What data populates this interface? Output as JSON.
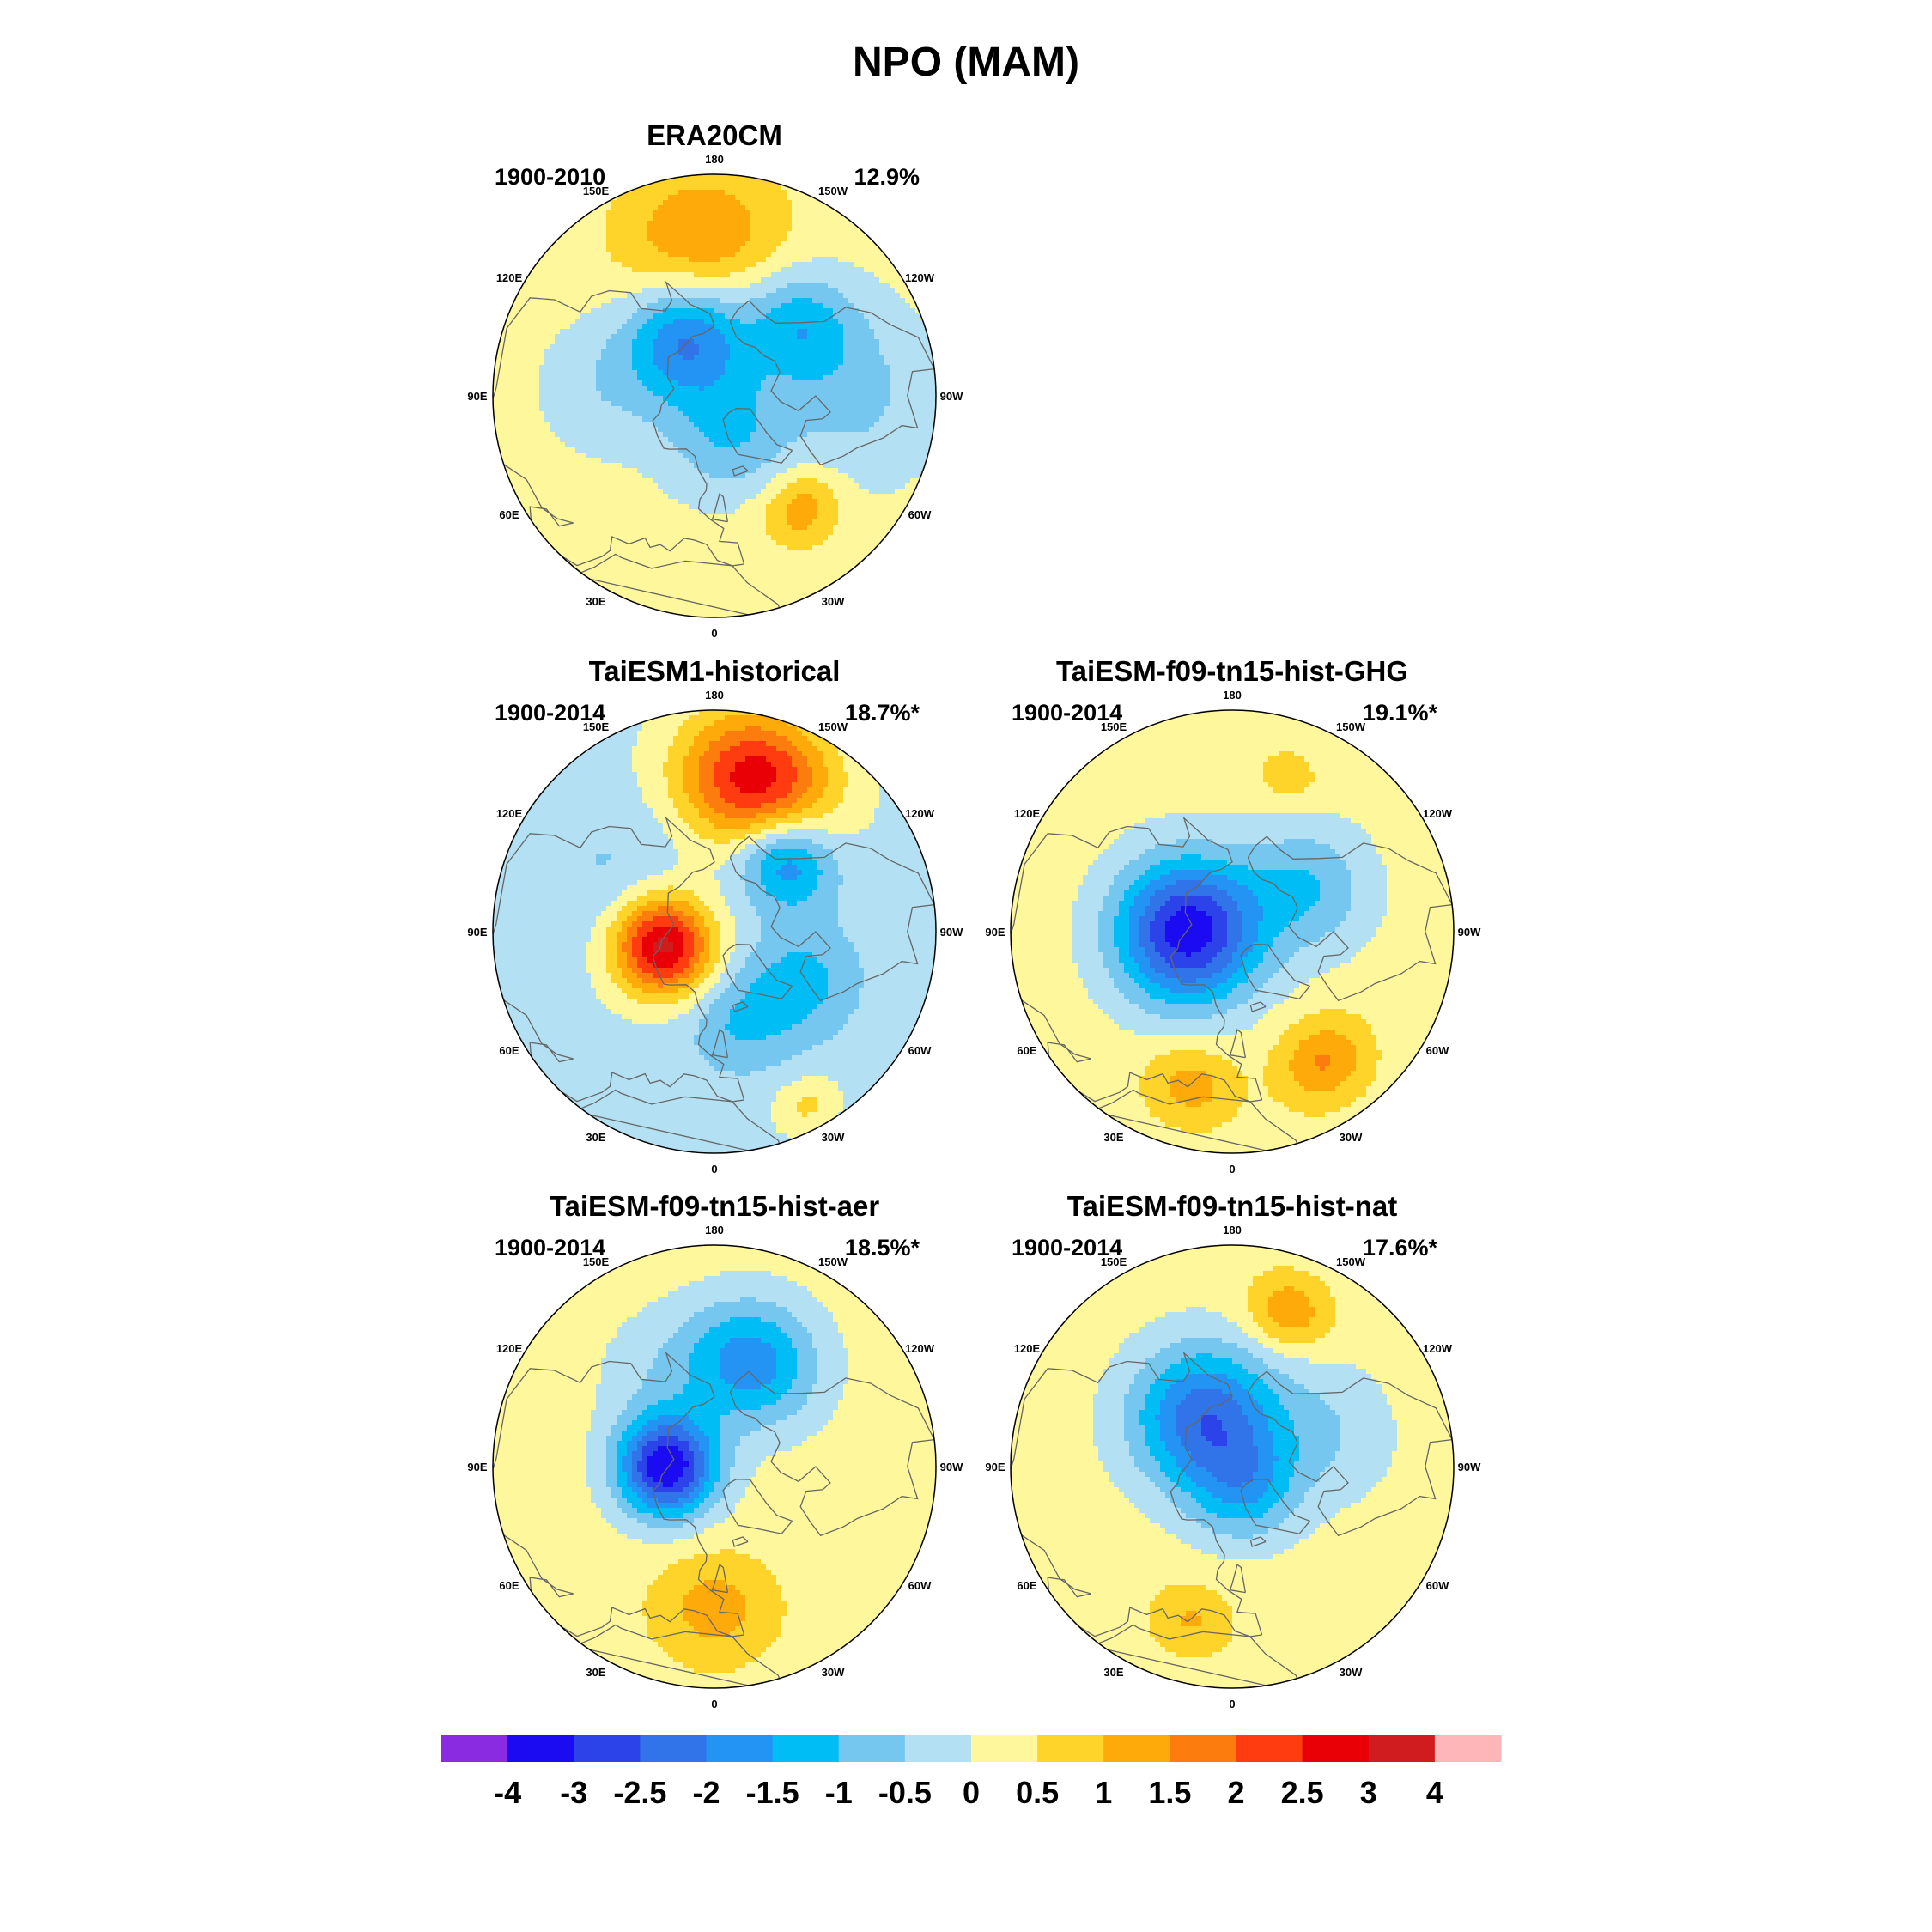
{
  "title": "NPO (MAM)",
  "colorbar": {
    "colors": [
      "#8a2be2",
      "#1a0bf2",
      "#2d43ea",
      "#3173e8",
      "#2394f3",
      "#00bdf5",
      "#76c7ef",
      "#b3e0f2",
      "#fff79c",
      "#fed32a",
      "#fdaa0a",
      "#fd7c0e",
      "#fe3c10",
      "#e80006",
      "#d01b1f",
      "#ffb6b9"
    ],
    "labels": [
      "-4",
      "-3",
      "-2.5",
      "-2",
      "-1.5",
      "-1",
      "-0.5",
      "0",
      "0.5",
      "1",
      "1.5",
      "2",
      "2.5",
      "3",
      "4"
    ]
  },
  "longitude_labels": [
    "180",
    "150E",
    "120E",
    "90E",
    "60E",
    "30E",
    "0",
    "30W",
    "60W",
    "90W",
    "120W",
    "150W"
  ],
  "panels": [
    {
      "id": "era20cm",
      "title": "ERA20CM",
      "period": "1900-2010",
      "variance": "12.9%",
      "base_level": 0.2,
      "blobs": [
        {
          "lon": 175,
          "lat": 40,
          "amp": 1.3,
          "sigma": 16
        },
        {
          "lon": 155,
          "lat": 70,
          "amp": -2.2,
          "sigma": 13
        },
        {
          "lon": -130,
          "lat": 55,
          "amp": -1.4,
          "sigma": 12
        },
        {
          "lon": -20,
          "lat": 78,
          "amp": -1.2,
          "sigma": 14
        },
        {
          "lon": -38,
          "lat": 45,
          "amp": 1.2,
          "sigma": 8
        },
        {
          "lon": -90,
          "lat": 45,
          "amp": -0.8,
          "sigma": 18
        },
        {
          "lon": 95,
          "lat": 55,
          "amp": -0.6,
          "sigma": 14
        }
      ]
    },
    {
      "id": "taiesm1-historical",
      "title": "TaiESM1-historical",
      "period": "1900-2014",
      "variance": "18.7%*",
      "base_level": -0.2,
      "blobs": [
        {
          "lon": -165,
          "lat": 40,
          "amp": 3.0,
          "sigma": 15
        },
        {
          "lon": 75,
          "lat": 73,
          "amp": 3.4,
          "sigma": 11
        },
        {
          "lon": -135,
          "lat": 58,
          "amp": -1.9,
          "sigma": 10
        },
        {
          "lon": -60,
          "lat": 58,
          "amp": -1.0,
          "sigma": 12
        },
        {
          "lon": -15,
          "lat": 60,
          "amp": -0.8,
          "sigma": 11
        },
        {
          "lon": 120,
          "lat": 55,
          "amp": -0.4,
          "sigma": 15
        },
        {
          "lon": -28,
          "lat": 28,
          "amp": 0.8,
          "sigma": 6
        }
      ]
    },
    {
      "id": "taiesm-ghg",
      "title": "TaiESM-f09-tn15-hist-GHG",
      "period": "1900-2014",
      "variance": "19.1%*",
      "base_level": 0.25,
      "blobs": [
        {
          "lon": 90,
          "lat": 76,
          "amp": -3.6,
          "sigma": 16
        },
        {
          "lon": -120,
          "lat": 62,
          "amp": -1.2,
          "sigma": 14
        },
        {
          "lon": -35,
          "lat": 40,
          "amp": 1.3,
          "sigma": 9
        },
        {
          "lon": 15,
          "lat": 40,
          "amp": 1.0,
          "sigma": 9
        },
        {
          "lon": -160,
          "lat": 38,
          "amp": 0.6,
          "sigma": 6
        }
      ]
    },
    {
      "id": "taiesm-aer",
      "title": "TaiESM-f09-tn15-hist-aer",
      "period": "1900-2014",
      "variance": "18.5%*",
      "base_level": 0.25,
      "blobs": [
        {
          "lon": 90,
          "lat": 75,
          "amp": -3.7,
          "sigma": 11
        },
        {
          "lon": -160,
          "lat": 55,
          "amp": -2.0,
          "sigma": 14
        },
        {
          "lon": 0,
          "lat": 45,
          "amp": 1.0,
          "sigma": 12
        },
        {
          "lon": 150,
          "lat": 55,
          "amp": -0.5,
          "sigma": 14
        }
      ]
    },
    {
      "id": "taiesm-nat",
      "title": "TaiESM-f09-tn15-hist-nat",
      "period": "1900-2014",
      "variance": "17.6%*",
      "base_level": 0.25,
      "blobs": [
        {
          "lon": 150,
          "lat": 72,
          "amp": -2.6,
          "sigma": 16
        },
        {
          "lon": -30,
          "lat": 82,
          "amp": -1.4,
          "sigma": 12
        },
        {
          "lon": -160,
          "lat": 38,
          "amp": 1.2,
          "sigma": 8
        },
        {
          "lon": 15,
          "lat": 40,
          "amp": 0.8,
          "sigma": 8
        },
        {
          "lon": -110,
          "lat": 58,
          "amp": -0.7,
          "sigma": 15
        }
      ]
    }
  ]
}
